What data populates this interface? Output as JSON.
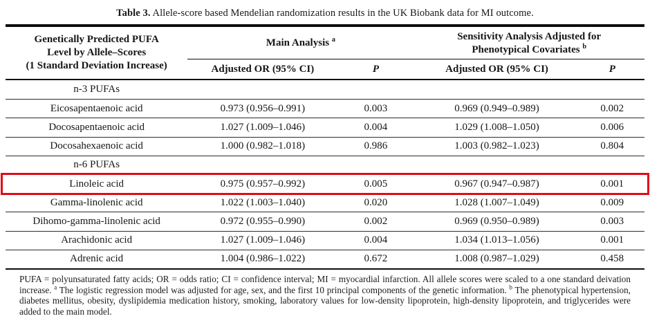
{
  "title": {
    "label_bold": "Table 3.",
    "label_rest": " Allele-score based Mendelian randomization results in the UK Biobank data for MI outcome."
  },
  "table": {
    "col1_header_lines": {
      "line1": "Genetically Predicted PUFA",
      "line2": "Level by Allele–Scores",
      "line3": "(1 Standard Deviation Increase)"
    },
    "groups": {
      "main": {
        "label": "Main Analysis",
        "sup": "a"
      },
      "sensitivity": {
        "line1": "Sensitivity Analysis Adjusted for",
        "line2": "Phenotypical Covariates",
        "sup": "b"
      }
    },
    "subheaders": {
      "or_main": "Adjusted OR (95% CI)",
      "p_main": "P",
      "or_sens": "Adjusted OR (95% CI)",
      "p_sens": "P"
    },
    "rows": [
      {
        "type": "section",
        "label": "n-3 PUFAs"
      },
      {
        "type": "data",
        "label": "Eicosapentaenoic acid",
        "or_main": "0.973 (0.956–0.991)",
        "p_main": "0.003",
        "or_sens": "0.969 (0.949–0.989)",
        "p_sens": "0.002"
      },
      {
        "type": "data",
        "label": "Docosapentaenoic acid",
        "or_main": "1.027 (1.009–1.046)",
        "p_main": "0.004",
        "or_sens": "1.029 (1.008–1.050)",
        "p_sens": "0.006"
      },
      {
        "type": "data",
        "label": "Docosahexaenoic acid",
        "or_main": "1.000 (0.982–1.018)",
        "p_main": "0.986",
        "or_sens": "1.003 (0.982–1.023)",
        "p_sens": "0.804"
      },
      {
        "type": "section",
        "label": "n-6 PUFAs"
      },
      {
        "type": "data",
        "highlighted": true,
        "label": "Linoleic acid",
        "or_main": "0.975 (0.957–0.992)",
        "p_main": "0.005",
        "or_sens": "0.967 (0.947–0.987)",
        "p_sens": "0.001"
      },
      {
        "type": "data",
        "label": "Gamma-linolenic acid",
        "or_main": "1.022 (1.003–1.040)",
        "p_main": "0.020",
        "or_sens": "1.028 (1.007–1.049)",
        "p_sens": "0.009"
      },
      {
        "type": "data",
        "label": "Dihomo-gamma-linolenic acid",
        "or_main": "0.972 (0.955–0.990)",
        "p_main": "0.002",
        "or_sens": "0.969 (0.950–0.989)",
        "p_sens": "0.003"
      },
      {
        "type": "data",
        "label": "Arachidonic acid",
        "or_main": "1.027 (1.009–1.046)",
        "p_main": "0.004",
        "or_sens": "1.034 (1.013–1.056)",
        "p_sens": "0.001"
      },
      {
        "type": "data",
        "label": "Adrenic acid",
        "or_main": "1.004 (0.986–1.022)",
        "p_main": "0.672",
        "or_sens": "1.008 (0.987–1.029)",
        "p_sens": "0.458"
      }
    ]
  },
  "footnote": {
    "seg1": "PUFA = polyunsaturated fatty acids; OR = odds ratio; CI = confidence interval; MI = myocardial infarction. All allele scores were scaled to a one standard deivation increase. ",
    "sup_a": "a",
    "seg2": " The logistic regression model was adjusted for age, sex, and the first 10 principal components of the genetic information. ",
    "sup_b": "b",
    "seg3": " The phenotypical hypertension, diabetes mellitus, obesity, dyslipidemia medication history, smoking, laboratory values for low-density lipoprotein, high-density lipoprotein, and triglycerides were added to the main model."
  },
  "colors": {
    "highlight_border": "#e00b16",
    "rule": "#0d0d0d",
    "text": "#161616"
  }
}
